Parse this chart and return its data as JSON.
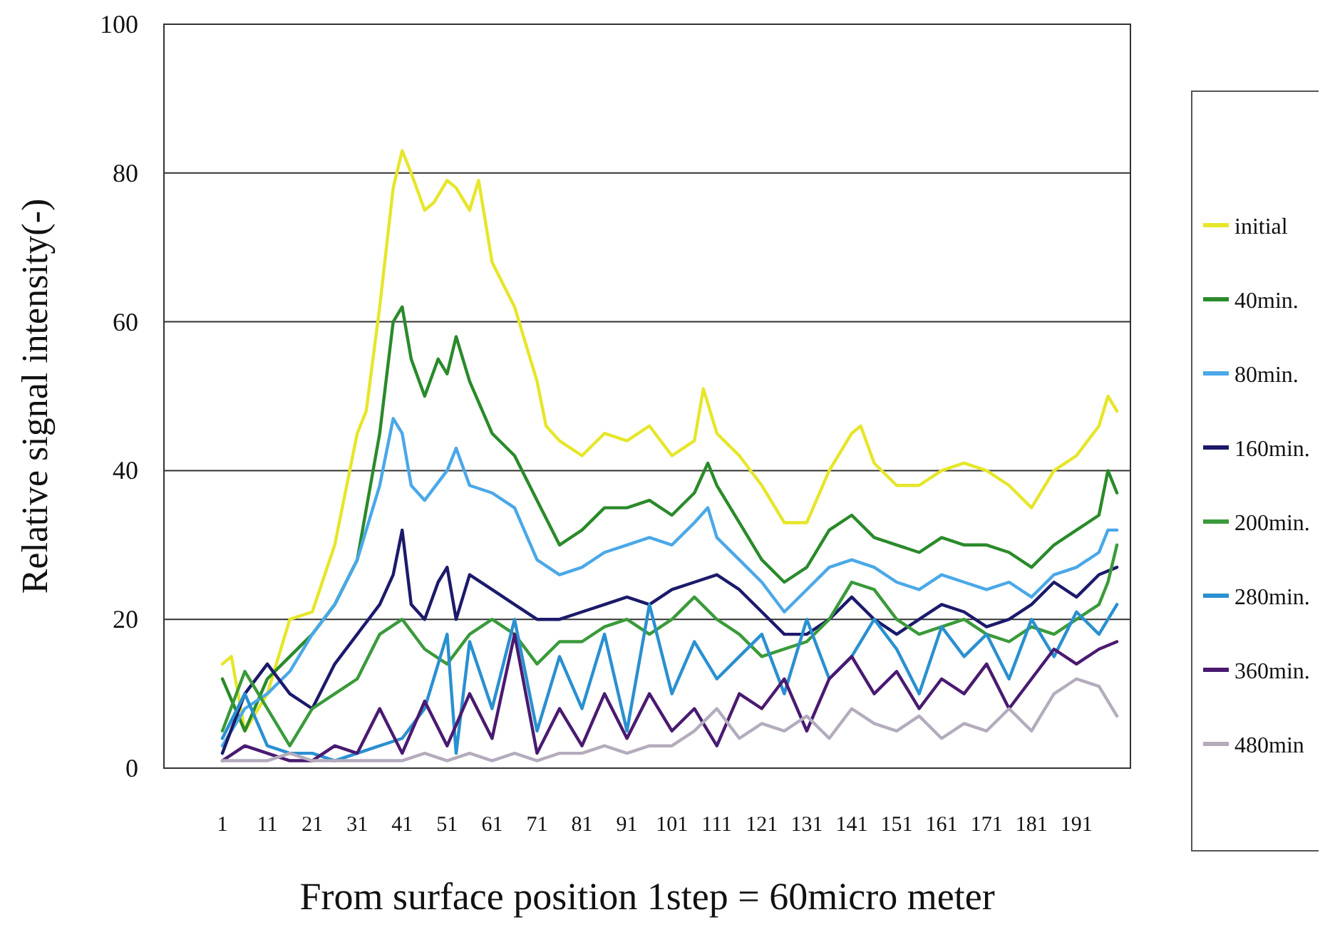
{
  "chart_data": {
    "type": "line",
    "xlabel": "From surface position 1step = 60micro meter",
    "ylabel": "Relative signal intensity(-)",
    "xlim": [
      -12,
      203
    ],
    "xticks": [
      1,
      11,
      21,
      31,
      41,
      51,
      61,
      71,
      81,
      91,
      101,
      111,
      121,
      131,
      141,
      151,
      161,
      171,
      181,
      191
    ],
    "ylim": [
      0,
      100
    ],
    "yticks": [
      0,
      20,
      40,
      60,
      80,
      100
    ],
    "grid": "y",
    "legend": "right",
    "marker": "none",
    "line_style": "solid",
    "series": [
      {
        "name": "initial",
        "color": "#e6e62a",
        "x": [
          1,
          3,
          6,
          11,
          16,
          21,
          26,
          31,
          33,
          36,
          39,
          41,
          43,
          46,
          48,
          51,
          53,
          56,
          58,
          61,
          66,
          71,
          73,
          76,
          81,
          86,
          91,
          96,
          101,
          106,
          108,
          111,
          116,
          121,
          126,
          131,
          136,
          141,
          143,
          146,
          151,
          156,
          161,
          166,
          171,
          176,
          181,
          186,
          191,
          196,
          198,
          200
        ],
        "values": [
          14,
          15,
          5,
          10,
          20,
          21,
          30,
          45,
          48,
          62,
          78,
          83,
          80,
          75,
          76,
          79,
          78,
          75,
          79,
          68,
          62,
          52,
          46,
          44,
          42,
          45,
          44,
          46,
          42,
          44,
          51,
          45,
          42,
          38,
          33,
          33,
          40,
          45,
          46,
          41,
          38,
          38,
          40,
          41,
          40,
          38,
          35,
          40,
          42,
          46,
          50,
          48
        ]
      },
      {
        "name": "40min.",
        "color": "#2a8a2a",
        "x": [
          1,
          6,
          11,
          16,
          21,
          26,
          31,
          36,
          39,
          41,
          43,
          46,
          49,
          51,
          53,
          56,
          61,
          66,
          71,
          76,
          81,
          86,
          91,
          96,
          101,
          106,
          109,
          111,
          116,
          121,
          126,
          131,
          136,
          141,
          146,
          151,
          156,
          161,
          166,
          171,
          176,
          181,
          186,
          191,
          196,
          198,
          200
        ],
        "values": [
          12,
          5,
          12,
          15,
          18,
          22,
          28,
          45,
          60,
          62,
          55,
          50,
          55,
          53,
          58,
          52,
          45,
          42,
          36,
          30,
          32,
          35,
          35,
          36,
          34,
          37,
          41,
          38,
          33,
          28,
          25,
          27,
          32,
          34,
          31,
          30,
          29,
          31,
          30,
          30,
          29,
          27,
          30,
          32,
          34,
          40,
          37
        ]
      },
      {
        "name": "80min.",
        "color": "#4aa8e8",
        "x": [
          1,
          6,
          11,
          16,
          21,
          26,
          31,
          36,
          39,
          41,
          43,
          46,
          51,
          53,
          56,
          61,
          66,
          71,
          76,
          81,
          86,
          91,
          96,
          101,
          106,
          109,
          111,
          116,
          121,
          126,
          131,
          136,
          141,
          146,
          151,
          156,
          161,
          166,
          171,
          176,
          181,
          186,
          191,
          196,
          198,
          200
        ],
        "values": [
          3,
          8,
          10,
          13,
          18,
          22,
          28,
          38,
          47,
          45,
          38,
          36,
          40,
          43,
          38,
          37,
          35,
          28,
          26,
          27,
          29,
          30,
          31,
          30,
          33,
          35,
          31,
          28,
          25,
          21,
          24,
          27,
          28,
          27,
          25,
          24,
          26,
          25,
          24,
          25,
          23,
          26,
          27,
          29,
          32,
          32
        ]
      },
      {
        "name": "160min.",
        "color": "#1c1a6a",
        "x": [
          1,
          6,
          11,
          16,
          21,
          26,
          31,
          36,
          39,
          41,
          43,
          46,
          49,
          51,
          53,
          56,
          61,
          66,
          71,
          76,
          81,
          86,
          91,
          96,
          101,
          106,
          111,
          116,
          121,
          126,
          131,
          136,
          141,
          146,
          151,
          156,
          161,
          166,
          171,
          176,
          181,
          186,
          191,
          196,
          200
        ],
        "values": [
          2,
          10,
          14,
          10,
          8,
          14,
          18,
          22,
          26,
          32,
          22,
          20,
          25,
          27,
          20,
          26,
          24,
          22,
          20,
          20,
          21,
          22,
          23,
          22,
          24,
          25,
          26,
          24,
          21,
          18,
          18,
          20,
          23,
          20,
          18,
          20,
          22,
          21,
          19,
          20,
          22,
          25,
          23,
          26,
          27
        ]
      },
      {
        "name": "200min.",
        "color": "#3a9a3a",
        "x": [
          1,
          6,
          11,
          16,
          21,
          26,
          31,
          36,
          41,
          46,
          51,
          56,
          61,
          66,
          71,
          76,
          81,
          86,
          91,
          96,
          101,
          106,
          111,
          116,
          121,
          126,
          131,
          136,
          141,
          146,
          151,
          156,
          161,
          166,
          171,
          176,
          181,
          186,
          191,
          196,
          198,
          200
        ],
        "values": [
          5,
          13,
          8,
          3,
          8,
          10,
          12,
          18,
          20,
          16,
          14,
          18,
          20,
          18,
          14,
          17,
          17,
          19,
          20,
          18,
          20,
          23,
          20,
          18,
          15,
          16,
          17,
          20,
          25,
          24,
          20,
          18,
          19,
          20,
          18,
          17,
          19,
          18,
          20,
          22,
          25,
          30
        ]
      },
      {
        "name": "280min.",
        "color": "#2a90d0",
        "x": [
          1,
          6,
          11,
          16,
          21,
          26,
          31,
          36,
          41,
          46,
          51,
          53,
          56,
          61,
          66,
          71,
          76,
          81,
          86,
          91,
          96,
          101,
          106,
          111,
          116,
          121,
          126,
          131,
          136,
          141,
          146,
          151,
          156,
          161,
          166,
          171,
          176,
          181,
          186,
          191,
          196,
          200
        ],
        "values": [
          4,
          10,
          3,
          2,
          2,
          1,
          2,
          3,
          4,
          8,
          18,
          2,
          17,
          8,
          20,
          5,
          15,
          8,
          18,
          5,
          22,
          10,
          17,
          12,
          15,
          18,
          10,
          20,
          12,
          15,
          20,
          16,
          10,
          19,
          15,
          18,
          12,
          20,
          15,
          21,
          18,
          22
        ]
      },
      {
        "name": "360min.",
        "color": "#4a1a70",
        "x": [
          1,
          6,
          11,
          16,
          21,
          26,
          31,
          36,
          41,
          46,
          51,
          56,
          61,
          66,
          71,
          76,
          81,
          86,
          91,
          96,
          101,
          106,
          111,
          116,
          121,
          126,
          131,
          136,
          141,
          146,
          151,
          156,
          161,
          166,
          171,
          176,
          181,
          186,
          191,
          196,
          200
        ],
        "values": [
          1,
          3,
          2,
          1,
          1,
          3,
          2,
          8,
          2,
          9,
          3,
          10,
          4,
          18,
          2,
          8,
          3,
          10,
          4,
          10,
          5,
          8,
          3,
          10,
          8,
          12,
          5,
          12,
          15,
          10,
          13,
          8,
          12,
          10,
          14,
          8,
          12,
          16,
          14,
          16,
          17
        ]
      },
      {
        "name": "480min",
        "color": "#b4acbc",
        "x": [
          1,
          6,
          11,
          16,
          21,
          26,
          31,
          36,
          41,
          46,
          51,
          56,
          61,
          66,
          71,
          76,
          81,
          86,
          91,
          96,
          101,
          106,
          111,
          116,
          121,
          126,
          131,
          136,
          141,
          146,
          151,
          156,
          161,
          166,
          171,
          176,
          181,
          186,
          191,
          196,
          200
        ],
        "values": [
          1,
          1,
          1,
          2,
          1,
          1,
          1,
          1,
          1,
          2,
          1,
          2,
          1,
          2,
          1,
          2,
          2,
          3,
          2,
          3,
          3,
          5,
          8,
          4,
          6,
          5,
          7,
          4,
          8,
          6,
          5,
          7,
          4,
          6,
          5,
          8,
          5,
          10,
          12,
          11,
          7
        ]
      }
    ]
  }
}
